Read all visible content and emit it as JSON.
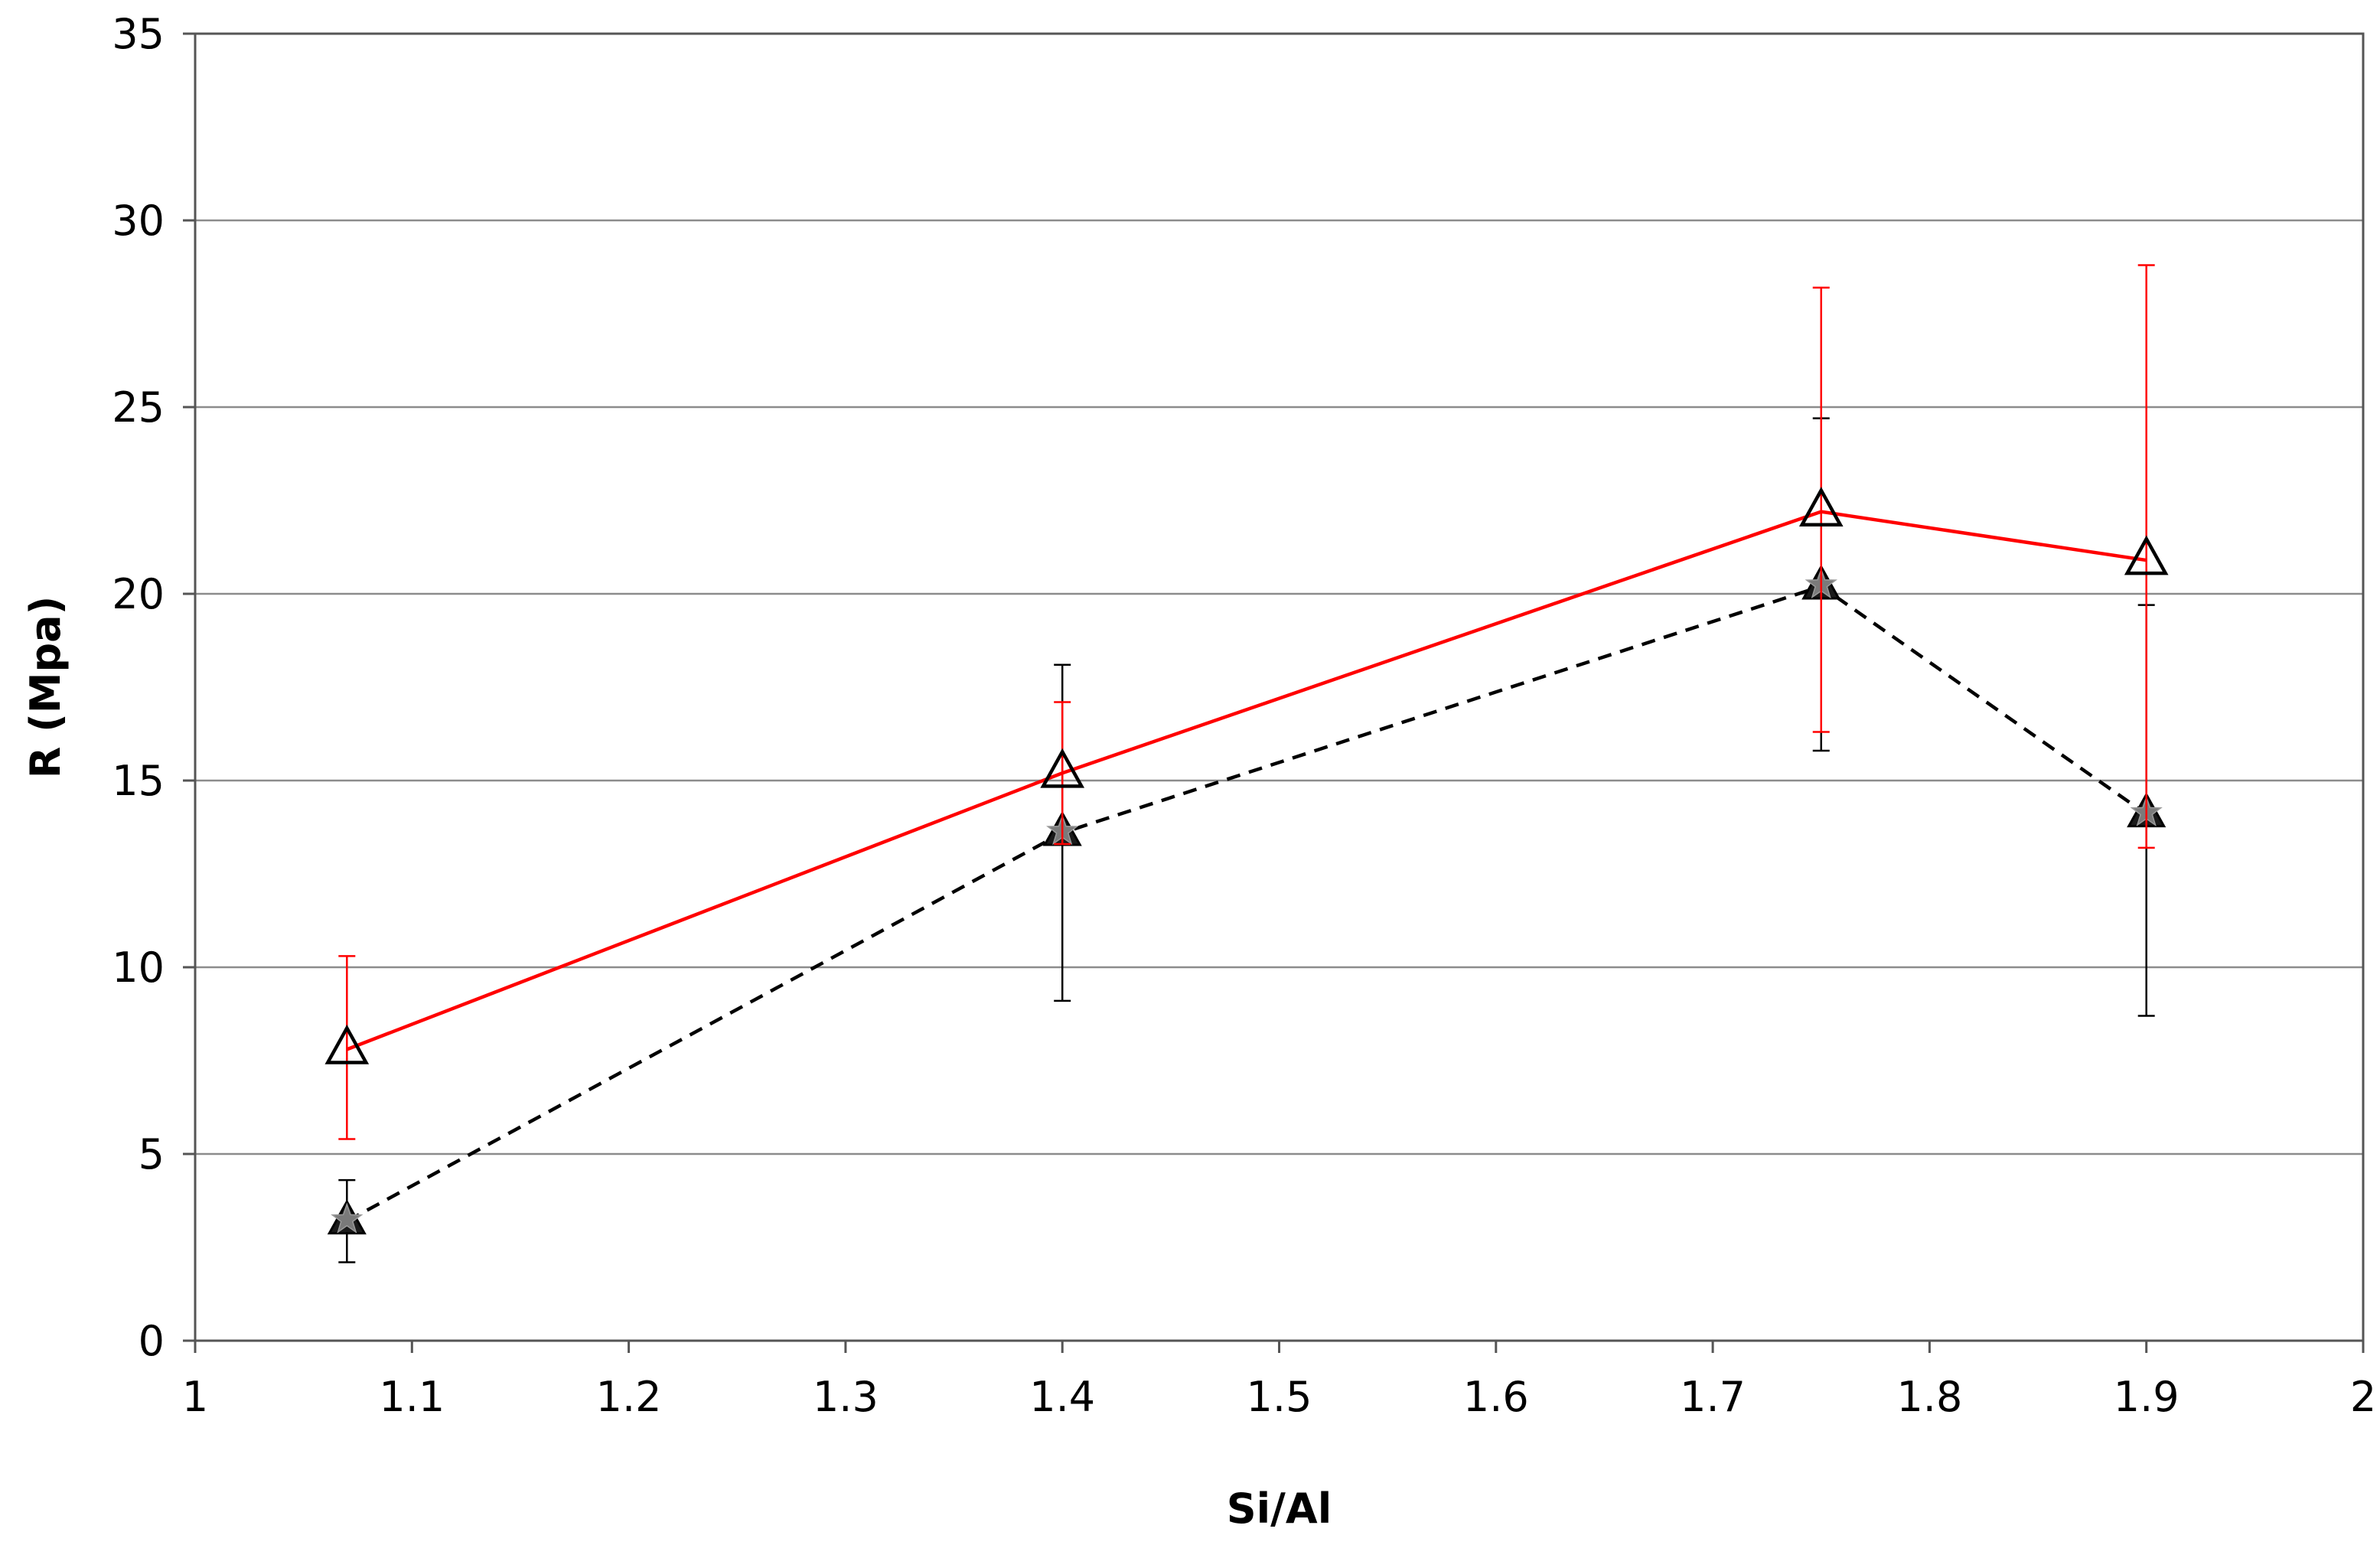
{
  "chart_data": {
    "type": "line",
    "title": "",
    "xlabel": "Si/Al",
    "ylabel": "R (Mpa)",
    "xlim": [
      1,
      2
    ],
    "ylim": [
      0,
      35
    ],
    "x_ticks": [
      1,
      1.1,
      1.2,
      1.3,
      1.4,
      1.5,
      1.6,
      1.7,
      1.8,
      1.9,
      2
    ],
    "x_tick_labels": [
      "1",
      "1.1",
      "1.2",
      "1.3",
      "1.4",
      "1.5",
      "1.6",
      "1.7",
      "1.8",
      "1.9",
      "2"
    ],
    "y_ticks": [
      0,
      5,
      10,
      15,
      20,
      25,
      30,
      35
    ],
    "y_tick_labels": [
      "0",
      "5",
      "10",
      "15",
      "20",
      "25",
      "30",
      "35"
    ],
    "grid": "horizontal",
    "legend": "none",
    "series": [
      {
        "line_style": "solid",
        "line_color": "#ff0000",
        "error_bar_color": "#ff0000",
        "marker": "open-triangle",
        "x": [
          1.07,
          1.4,
          1.75,
          1.9
        ],
        "y": [
          7.8,
          15.2,
          22.2,
          20.9
        ],
        "error_low": [
          5.4,
          13.3,
          16.3,
          13.2
        ],
        "error_high": [
          10.3,
          17.1,
          28.2,
          28.8
        ]
      },
      {
        "line_style": "dashed",
        "line_color": "#000000",
        "error_bar_color": "#000000",
        "marker": "filled-triangle-star",
        "x": [
          1.07,
          1.4,
          1.75,
          1.9
        ],
        "y": [
          3.2,
          13.6,
          20.2,
          14.1
        ],
        "error_low": [
          2.1,
          9.1,
          15.8,
          8.7
        ],
        "error_high": [
          4.3,
          18.1,
          24.7,
          19.7
        ]
      }
    ]
  }
}
